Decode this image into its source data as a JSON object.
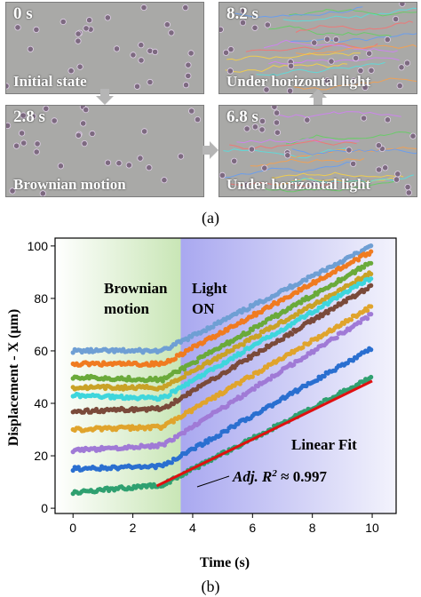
{
  "figure_a": {
    "panels": [
      {
        "id": "p1",
        "time": "0 s",
        "caption": "Initial state"
      },
      {
        "id": "p2",
        "time": "8.2 s",
        "caption": "Under horizontal light"
      },
      {
        "id": "p3",
        "time": "2.8 s",
        "caption": "Brownian motion"
      },
      {
        "id": "p4",
        "time": "6.8 s",
        "caption": "Under horizontal light"
      }
    ],
    "label": "(a)"
  },
  "figure_b_label": "(b)",
  "chart_data": {
    "type": "scatter",
    "xlabel": "Time (s)",
    "ylabel": "Displacement - X (μm)",
    "xlim": [
      -0.6,
      10.8
    ],
    "ylim": [
      -2,
      103
    ],
    "xticks": [
      "0",
      "2",
      "4",
      "6",
      "8",
      "10"
    ],
    "yticks": [
      "0",
      "20",
      "40",
      "60",
      "80",
      "100"
    ],
    "light_on_time": 3.6,
    "regions": [
      {
        "label_line1": "Brownian",
        "label_line2": "motion",
        "color": "#c9e6b6"
      },
      {
        "label_line1": "Light",
        "label_line2": "ON",
        "color": "#a9a8f0"
      }
    ],
    "series": [
      {
        "color": "#6f9fd4",
        "y0": 60,
        "y_at_3": 60,
        "y10": 100
      },
      {
        "color": "#f07b20",
        "y0": 55,
        "y_at_3": 55,
        "y10": 98
      },
      {
        "color": "#6aaa3a",
        "y0": 50,
        "y_at_3": 49,
        "y10": 94
      },
      {
        "color": "#c9a227",
        "y0": 46,
        "y_at_3": 46,
        "y10": 90
      },
      {
        "color": "#3ed6dc",
        "y0": 43,
        "y_at_3": 42,
        "y10": 88
      },
      {
        "color": "#7a4a3a",
        "y0": 37,
        "y_at_3": 38,
        "y10": 85
      },
      {
        "color": "#e0a42c",
        "y0": 30,
        "y_at_3": 31,
        "y10": 77
      },
      {
        "color": "#a07ad6",
        "y0": 22,
        "y_at_3": 24,
        "y10": 74
      },
      {
        "color": "#2a6fd0",
        "y0": 15,
        "y_at_3": 16,
        "y10": 61
      },
      {
        "color": "#2fa070",
        "y0": 6,
        "y_at_3": 9,
        "y10": 50
      }
    ],
    "linear_fit": {
      "label": "Linear Fit",
      "x": [
        2.8,
        10
      ],
      "y": [
        8.5,
        48.5
      ],
      "color": "#e01010"
    },
    "annotation": {
      "text_main": "Adj. R",
      "superscript": "2",
      "text_tail": " ≈ 0.997"
    }
  }
}
